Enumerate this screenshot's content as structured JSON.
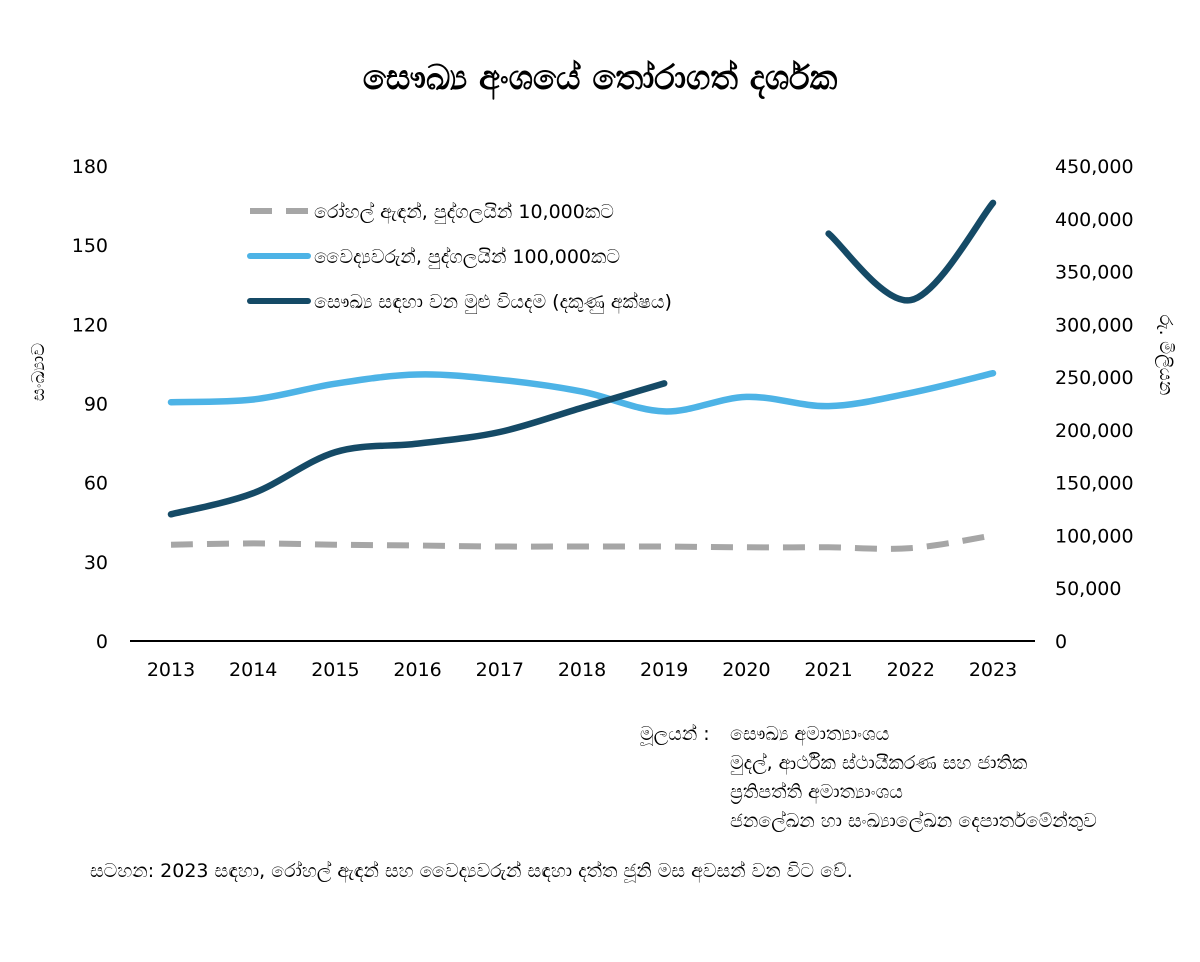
{
  "title": "සෞඛ්‍ය අංශයේ තෝරාගත් දර්ශක",
  "chart_data": {
    "type": "line",
    "x": [
      "2013",
      "2014",
      "2015",
      "2016",
      "2017",
      "2018",
      "2019",
      "2020",
      "2021",
      "2022",
      "2023"
    ],
    "left_axis": {
      "label": "සංඛ්‍යාව",
      "ticks": [
        "0",
        "30",
        "60",
        "90",
        "120",
        "150",
        "180"
      ],
      "range": [
        0,
        180
      ]
    },
    "right_axis": {
      "label": "රු. මිලියන",
      "ticks": [
        "0",
        "50,000",
        "100,000",
        "150,000",
        "200,000",
        "250,000",
        "300,000",
        "350,000",
        "400,000",
        "450,000"
      ],
      "range": [
        0,
        450000
      ]
    },
    "series": [
      {
        "name": "රෝහල් ඇඳන්, පුද්ගලයින් 10,000කට",
        "axis": "left",
        "color": "#a6a6a6",
        "dashed": true,
        "values": [
          36.5,
          37,
          36.5,
          36.2,
          35.8,
          35.8,
          35.8,
          35.5,
          35.5,
          35.2,
          40
        ]
      },
      {
        "name": "වෛද්‍යවරුන්, පුද්ගලයින් 100,000කට",
        "axis": "left",
        "color": "#4db3e6",
        "dashed": false,
        "values": [
          90.5,
          91.5,
          97.5,
          101,
          99,
          94.5,
          87,
          92.5,
          89,
          94,
          101.5
        ]
      },
      {
        "name": "සෞඛ්‍ය සඳහා වන මුළු වියදම (දකුණු අක්ෂය)",
        "axis": "right",
        "color": "#154a66",
        "dashed": false,
        "values": [
          120000,
          140000,
          179000,
          187000,
          198000,
          221000,
          244000,
          null,
          386000,
          323000,
          415000
        ]
      }
    ],
    "legend_position": "top-left"
  },
  "sources": {
    "label": "මූලයන් :",
    "lines": [
      "සෞඛ්‍ය අමාත්‍යාංශය",
      "මුදල්, ආර්ථික ස්ථායීකරණ සහ ජාතික",
      "ප්‍රතිපත්ති අමාත්‍යාංශය",
      "ජනලේඛන හා සංඛ්‍යාලේඛන දෙපාර්තමේන්තුව"
    ]
  },
  "note": "සටහන: 2023 සඳහා, රෝහල් ඇඳන් සහ වෛද්‍යවරුන් සඳහා දත්ත ජූනි මස අවසන් වන විට වේ."
}
